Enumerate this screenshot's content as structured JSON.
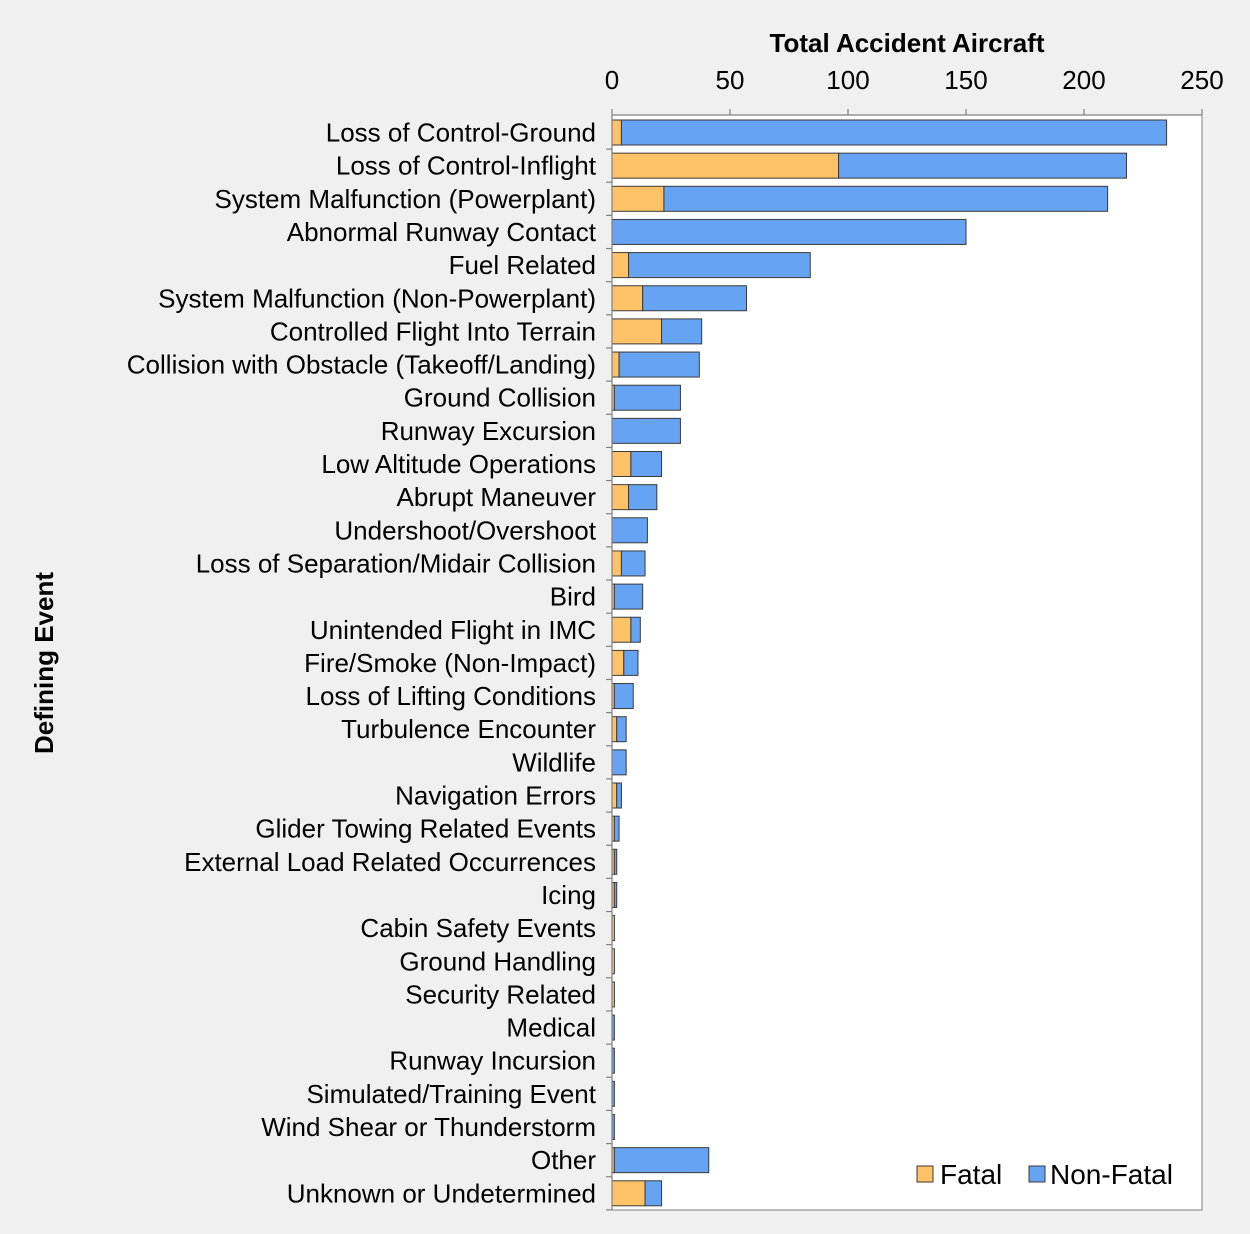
{
  "chart_data": {
    "type": "bar",
    "orientation": "horizontal",
    "stacked": true,
    "title": "",
    "xlabel": "Total Accident Aircraft",
    "ylabel": "Defining Event",
    "xlim": [
      0,
      250
    ],
    "x_ticks": [
      0,
      50,
      100,
      150,
      200,
      250
    ],
    "grid": false,
    "legend_position": "bottom-right",
    "categories": [
      "Loss of Control-Ground",
      "Loss of Control-Inflight",
      "System Malfunction (Powerplant)",
      "Abnormal Runway Contact",
      "Fuel Related",
      "System Malfunction (Non-Powerplant)",
      "Controlled Flight Into Terrain",
      "Collision with Obstacle (Takeoff/Landing)",
      "Ground Collision",
      "Runway Excursion",
      "Low Altitude Operations",
      "Abrupt Maneuver",
      "Undershoot/Overshoot",
      "Loss of Separation/Midair Collision",
      "Bird",
      "Unintended Flight in IMC",
      "Fire/Smoke (Non-Impact)",
      "Loss of Lifting Conditions",
      "Turbulence Encounter",
      "Wildlife",
      "Navigation Errors",
      "Glider Towing Related Events",
      "External Load Related Occurrences",
      "Icing",
      "Cabin Safety Events",
      "Ground Handling",
      "Security Related",
      "Medical",
      "Runway Incursion",
      "Simulated/Training Event",
      "Wind Shear or Thunderstorm",
      "Other",
      "Unknown or Undetermined"
    ],
    "series": [
      {
        "name": "Fatal",
        "color": "#FFC266",
        "values": [
          4,
          96,
          22,
          0,
          7,
          13,
          21,
          3,
          1,
          0,
          8,
          7,
          0,
          4,
          1,
          8,
          5,
          1,
          2,
          0,
          2,
          1,
          1,
          1,
          1,
          1,
          1,
          0,
          0,
          0,
          0,
          1,
          14
        ]
      },
      {
        "name": "Non-Fatal",
        "color": "#66A3F2",
        "values": [
          231,
          122,
          188,
          150,
          77,
          44,
          17,
          34,
          28,
          29,
          13,
          12,
          15,
          10,
          12,
          4,
          6,
          8,
          4,
          6,
          2,
          2,
          1,
          1,
          0,
          0,
          0,
          1,
          1,
          1,
          1,
          40,
          7
        ]
      }
    ]
  }
}
